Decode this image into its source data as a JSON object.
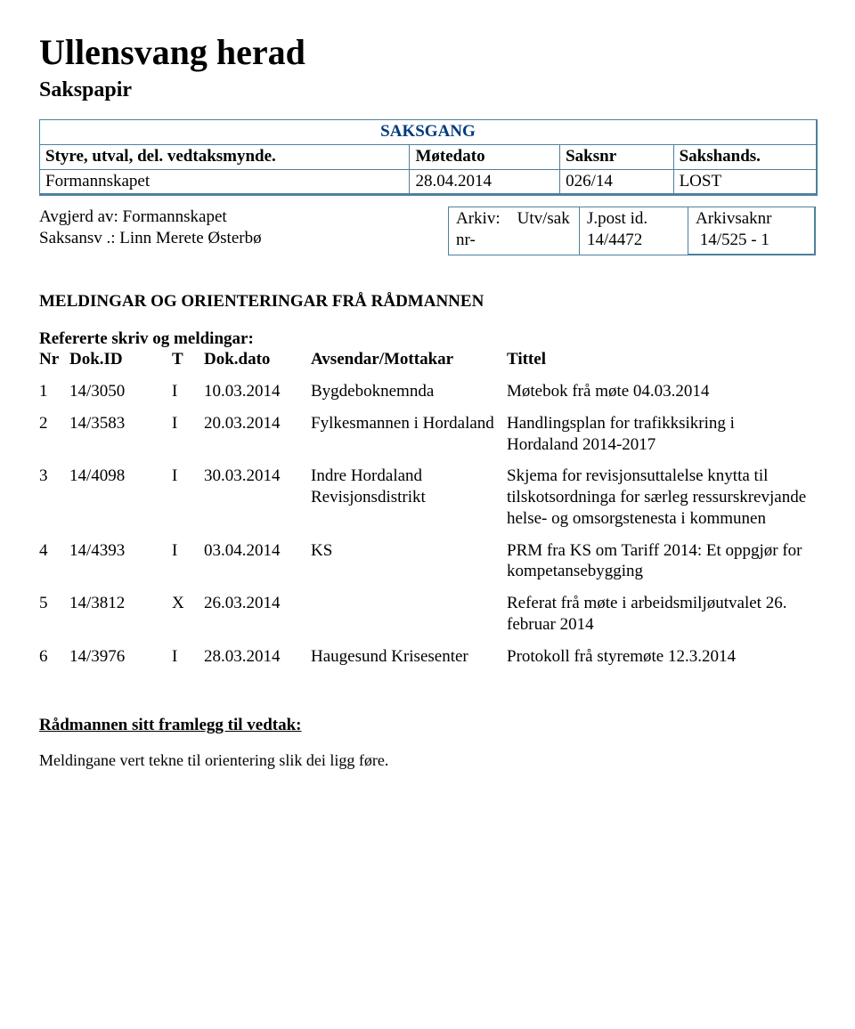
{
  "title": "Ullensvang herad",
  "subtitle": "Sakspapir",
  "saksgang": {
    "label": "SAKSGANG",
    "headers": {
      "styre": "Styre, utval, del. vedtaksmynde.",
      "motedato": "Møtedato",
      "saksnr": "Saksnr",
      "sakshands": "Sakshands."
    },
    "row": {
      "styre": "Formannskapet",
      "motedato": "28.04.2014",
      "saksnr": "026/14",
      "sakshands": "LOST"
    }
  },
  "avgjerd": {
    "line1": "Avgjerd av: Formannskapet",
    "line2": "Saksansv .:  Linn Merete Østerbø"
  },
  "arkiv": {
    "label1": "Arkiv:",
    "label2": "nr-",
    "value": "Utv/sak"
  },
  "jpost": {
    "label": "J.post id.",
    "value": "14/4472"
  },
  "arkivsak": {
    "label": "Arkivsaknr",
    "value": "14/525 - 1"
  },
  "section_title": "MELDINGAR OG ORIENTERINGAR FRÅ RÅDMANNEN",
  "ref_head": "Refererte skriv og meldingar:",
  "skriv_headers": {
    "nr": "Nr",
    "dokid": "Dok.ID",
    "t": "T",
    "dato": "Dok.dato",
    "avsendar": "Avsendar/Mottakar",
    "tittel": "Tittel"
  },
  "skriv": [
    {
      "nr": "1",
      "dokid": "14/3050",
      "t": "I",
      "dato": "10.03.2014",
      "avsendar": "Bygdeboknemnda",
      "tittel": "Møtebok frå møte 04.03.2014"
    },
    {
      "nr": "2",
      "dokid": "14/3583",
      "t": "I",
      "dato": "20.03.2014",
      "avsendar": "Fylkesmannen i Hordaland",
      "tittel": "Handlingsplan for trafikksikring i Hordaland 2014-2017"
    },
    {
      "nr": "3",
      "dokid": "14/4098",
      "t": "I",
      "dato": "30.03.2014",
      "avsendar": "Indre Hordaland Revisjonsdistrikt",
      "tittel": "Skjema for revisjonsuttalelse knytta til tilskotsordninga for særleg ressurskrevjande helse- og omsorgstenesta i kommunen"
    },
    {
      "nr": "4",
      "dokid": "14/4393",
      "t": "I",
      "dato": "03.04.2014",
      "avsendar": "KS",
      "tittel": "PRM fra KS om Tariff 2014: Et oppgjør for kompetansebygging"
    },
    {
      "nr": "5",
      "dokid": "14/3812",
      "t": "X",
      "dato": "26.03.2014",
      "avsendar": "",
      "tittel": "Referat frå møte i arbeidsmiljøutvalet 26. februar 2014"
    },
    {
      "nr": "6",
      "dokid": "14/3976",
      "t": "I",
      "dato": "28.03.2014",
      "avsendar": "Haugesund Krisesenter",
      "tittel": "Protokoll frå styremøte 12.3.2014"
    }
  ],
  "framlegg": {
    "head": "Rådmannen sitt framlegg til vedtak:",
    "body": "Meldingane vert tekne til orientering slik dei ligg føre."
  }
}
